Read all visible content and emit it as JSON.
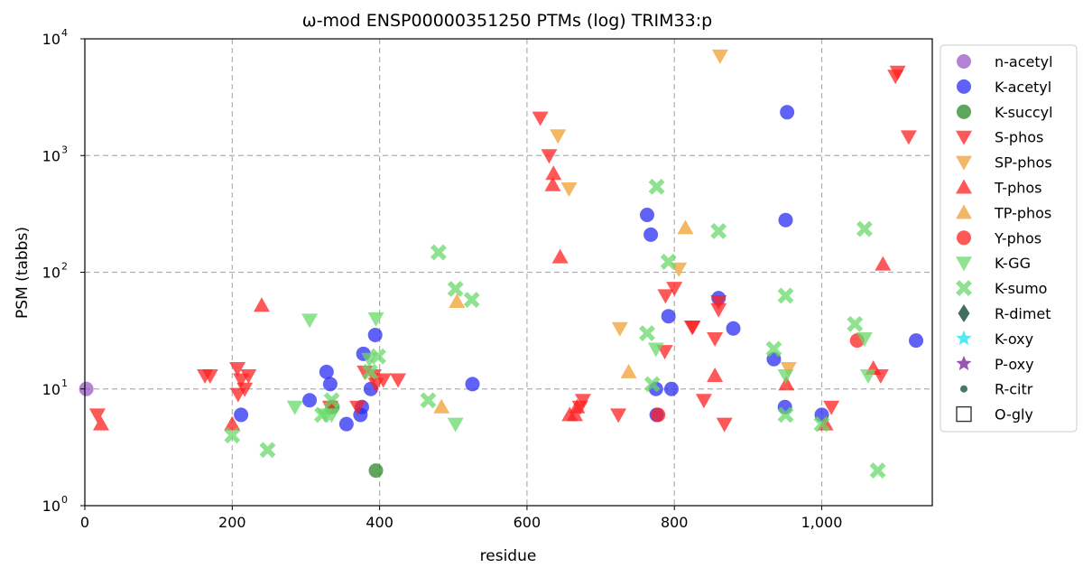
{
  "chart_data": {
    "type": "scatter",
    "title": "ω-mod ENSP00000351250 PTMs (log) TRIM33:p",
    "xlabel": "residue",
    "ylabel": "PSM (tabbs)",
    "xlim": [
      0,
      1150
    ],
    "ylim": [
      1,
      10000
    ],
    "yscale": "log",
    "grid": true,
    "legend_position": "right",
    "x_ticks": [
      {
        "value": 0,
        "label": "0"
      },
      {
        "value": 200,
        "label": "200"
      },
      {
        "value": 400,
        "label": "400"
      },
      {
        "value": 600,
        "label": "600"
      },
      {
        "value": 800,
        "label": "800"
      },
      {
        "value": 1000,
        "label": "1,000"
      }
    ],
    "y_ticks": [
      {
        "value": 1,
        "base": "10",
        "exp": "0"
      },
      {
        "value": 10,
        "base": "10",
        "exp": "1"
      },
      {
        "value": 100,
        "base": "10",
        "exp": "2"
      },
      {
        "value": 1000,
        "base": "10",
        "exp": "3"
      },
      {
        "value": 10000,
        "base": "10",
        "exp": "4"
      }
    ],
    "series": [
      {
        "name": "n-acetyl",
        "color": "#9b59c6",
        "marker": "circle",
        "points": [
          [
            2,
            10
          ]
        ]
      },
      {
        "name": "K-acetyl",
        "color": "#2a2ef0",
        "marker": "circle",
        "points": [
          [
            212,
            6
          ],
          [
            305,
            8
          ],
          [
            328,
            14
          ],
          [
            333,
            11
          ],
          [
            355,
            5
          ],
          [
            374,
            6
          ],
          [
            376,
            7
          ],
          [
            378,
            20
          ],
          [
            388,
            10
          ],
          [
            394,
            29
          ],
          [
            526,
            11
          ],
          [
            763,
            310
          ],
          [
            768,
            210
          ],
          [
            775,
            10
          ],
          [
            776,
            6
          ],
          [
            792,
            42
          ],
          [
            796,
            10
          ],
          [
            860,
            60
          ],
          [
            880,
            33
          ],
          [
            935,
            18
          ],
          [
            950,
            7
          ],
          [
            951,
            280
          ],
          [
            953,
            2350
          ],
          [
            1000,
            6
          ],
          [
            1128,
            26
          ]
        ]
      },
      {
        "name": "K-succyl",
        "color": "#2a8a2a",
        "marker": "circle",
        "points": [
          [
            336,
            7
          ],
          [
            395,
            2
          ]
        ]
      },
      {
        "name": "S-phos",
        "color": "#ff2020",
        "marker": "triangle-down",
        "points": [
          [
            17,
            6
          ],
          [
            163,
            13
          ],
          [
            170,
            13
          ],
          [
            207,
            15
          ],
          [
            208,
            9
          ],
          [
            212,
            12
          ],
          [
            217,
            10
          ],
          [
            222,
            13
          ],
          [
            333,
            7
          ],
          [
            370,
            7
          ],
          [
            380,
            14
          ],
          [
            392,
            13
          ],
          [
            395,
            11
          ],
          [
            405,
            12
          ],
          [
            425,
            12
          ],
          [
            618,
            2100
          ],
          [
            630,
            1000
          ],
          [
            672,
            7
          ],
          [
            676,
            8
          ],
          [
            724,
            6
          ],
          [
            787,
            21
          ],
          [
            788,
            63
          ],
          [
            800,
            73
          ],
          [
            824,
            34
          ],
          [
            825,
            34
          ],
          [
            840,
            8
          ],
          [
            855,
            27
          ],
          [
            860,
            48
          ],
          [
            860,
            56
          ],
          [
            868,
            5
          ],
          [
            1013,
            7
          ],
          [
            1080,
            13
          ],
          [
            1100,
            4800
          ],
          [
            1103,
            5200
          ],
          [
            1118,
            1450
          ]
        ]
      },
      {
        "name": "SP-phos",
        "color": "#f0a030",
        "marker": "triangle-down",
        "points": [
          [
            642,
            1480
          ],
          [
            657,
            520
          ],
          [
            726,
            33
          ],
          [
            806,
            107
          ],
          [
            862,
            7150
          ],
          [
            955,
            15
          ]
        ]
      },
      {
        "name": "T-phos",
        "color": "#ff2020",
        "marker": "triangle-up",
        "points": [
          [
            22,
            5
          ],
          [
            200,
            5
          ],
          [
            240,
            52
          ],
          [
            635,
            560
          ],
          [
            636,
            700
          ],
          [
            645,
            135
          ],
          [
            658,
            6
          ],
          [
            665,
            6
          ],
          [
            668,
            7
          ],
          [
            855,
            13
          ],
          [
            952,
            11
          ],
          [
            1005,
            5
          ],
          [
            1070,
            15
          ],
          [
            1083,
            117
          ]
        ]
      },
      {
        "name": "TP-phos",
        "color": "#f0a030",
        "marker": "triangle-up",
        "points": [
          [
            484,
            7
          ],
          [
            505,
            56
          ],
          [
            738,
            14
          ],
          [
            815,
            240
          ]
        ]
      },
      {
        "name": "Y-phos",
        "color": "#ff2020",
        "marker": "circle",
        "points": [
          [
            778,
            6
          ],
          [
            1048,
            26
          ]
        ]
      },
      {
        "name": "K-GG",
        "color": "#6ad86a",
        "marker": "triangle-down",
        "points": [
          [
            285,
            7
          ],
          [
            305,
            39
          ],
          [
            326,
            6
          ],
          [
            335,
            6
          ],
          [
            386,
            18
          ],
          [
            395,
            40
          ],
          [
            503,
            5
          ],
          [
            775,
            22
          ],
          [
            951,
            13
          ],
          [
            1058,
            27
          ],
          [
            1063,
            13
          ]
        ]
      },
      {
        "name": "K-sumo",
        "color": "#6ad86a",
        "marker": "x",
        "points": [
          [
            200,
            4
          ],
          [
            248,
            3
          ],
          [
            322,
            6
          ],
          [
            335,
            8
          ],
          [
            387,
            14
          ],
          [
            398,
            19
          ],
          [
            466,
            8
          ],
          [
            480,
            148
          ],
          [
            503,
            72
          ],
          [
            525,
            58
          ],
          [
            763,
            30
          ],
          [
            770,
            11
          ],
          [
            776,
            540
          ],
          [
            792,
            123
          ],
          [
            860,
            225
          ],
          [
            935,
            22
          ],
          [
            951,
            63
          ],
          [
            951,
            6
          ],
          [
            1000,
            5
          ],
          [
            1045,
            36
          ],
          [
            1058,
            235
          ],
          [
            1076,
            2
          ]
        ]
      },
      {
        "name": "R-dimet",
        "color": "#2e5e4e",
        "marker": "diamond",
        "points": []
      },
      {
        "name": "K-oxy",
        "color": "#40e8f0",
        "marker": "star",
        "points": []
      },
      {
        "name": "P-oxy",
        "color": "#8e44ad",
        "marker": "star",
        "points": []
      },
      {
        "name": "R-citr",
        "color": "#2e6b5a",
        "marker": "dot",
        "points": []
      },
      {
        "name": "O-gly",
        "color": "#333333",
        "marker": "square-open",
        "points": []
      }
    ]
  }
}
